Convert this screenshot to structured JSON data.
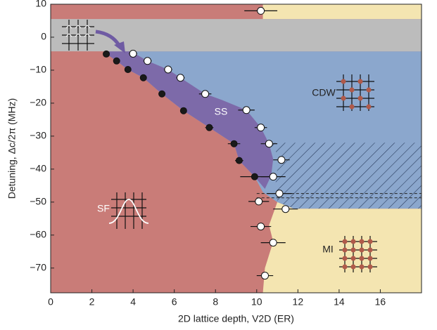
{
  "chart_data": {
    "type": "phase-diagram",
    "xlabel": "2D lattice depth, V2D (ER)",
    "ylabel": "Detuning, Δc/2π (MHz)",
    "xlim": [
      0,
      18
    ],
    "ylim": [
      -77.5,
      10
    ],
    "xticks": [
      0,
      2,
      4,
      6,
      8,
      10,
      12,
      14,
      16
    ],
    "yticks": [
      10,
      0,
      {
        "value": -10,
        "label": "−10"
      },
      {
        "value": -20,
        "label": "−20"
      },
      {
        "value": -30,
        "label": "−30"
      },
      {
        "value": -40,
        "label": "−40"
      },
      {
        "value": -50,
        "label": "−50"
      },
      {
        "value": -60,
        "label": "−60"
      },
      {
        "value": -70,
        "label": "−70"
      }
    ],
    "regions": [
      {
        "label": "SF",
        "color": "#c97c78",
        "points": [
          [
            0,
            -77.5
          ],
          [
            18,
            -77.5
          ],
          [
            18,
            10
          ],
          [
            0,
            10
          ]
        ]
      },
      {
        "color": "#f4e5b1",
        "points": [
          [
            10.3,
            5.5
          ],
          [
            18,
            5.5
          ],
          [
            18,
            10
          ],
          [
            10.3,
            10
          ]
        ]
      },
      {
        "label": "CDW",
        "color": "#8ba7cd",
        "points": [
          [
            2.6,
            -4.3
          ],
          [
            18,
            -4.3
          ],
          [
            18,
            -52
          ],
          [
            11.8,
            -52
          ],
          [
            11,
            -50
          ],
          [
            10.3,
            -47
          ],
          [
            9.9,
            -42.3
          ],
          [
            9.15,
            -37.4
          ],
          [
            8.9,
            -32.3
          ],
          [
            7.7,
            -27.4
          ],
          [
            6.45,
            -22.3
          ],
          [
            5.4,
            -17.2
          ],
          [
            4.5,
            -12.3
          ],
          [
            3.75,
            -9.8
          ],
          [
            3.2,
            -7.2
          ]
        ]
      },
      {
        "hatch": true,
        "color": "#2b3d5e",
        "points": [
          [
            10.6,
            -32
          ],
          [
            18,
            -32
          ],
          [
            18,
            -52
          ],
          [
            11.8,
            -52
          ],
          [
            11,
            -50
          ],
          [
            10.9,
            -42
          ],
          [
            11.2,
            -37
          ]
        ]
      },
      {
        "label": "SS",
        "color": "#7d6aa9",
        "points": [
          [
            2.7,
            -4.3
          ],
          [
            3.9,
            -4.3
          ],
          [
            4.7,
            -7.2
          ],
          [
            5.7,
            -9.8
          ],
          [
            6.3,
            -12.3
          ],
          [
            7.5,
            -17.2
          ],
          [
            8.3,
            -19
          ],
          [
            9.5,
            -22.1
          ],
          [
            10.2,
            -27.4
          ],
          [
            10.6,
            -32.3
          ],
          [
            10.8,
            -37
          ],
          [
            10.7,
            -42
          ],
          [
            10.4,
            -46
          ],
          [
            9.9,
            -42.3
          ],
          [
            9.15,
            -37.4
          ],
          [
            8.9,
            -32.3
          ],
          [
            7.7,
            -27.4
          ],
          [
            6.45,
            -22.3
          ],
          [
            5.4,
            -17.2
          ],
          [
            4.5,
            -12.3
          ],
          [
            3.75,
            -9.8
          ],
          [
            3.2,
            -7.2
          ],
          [
            2.7,
            -5.1
          ]
        ]
      },
      {
        "label": "MI",
        "color": "#f4e5b1",
        "points": [
          [
            18,
            -52
          ],
          [
            11.8,
            -52
          ],
          [
            11,
            -50
          ],
          [
            10.6,
            -57
          ],
          [
            10.8,
            -62
          ],
          [
            10.4,
            -70
          ],
          [
            10.3,
            -77.5
          ],
          [
            18,
            -77.5
          ]
        ]
      },
      {
        "color": "#bcbcbc",
        "points": [
          [
            0,
            -4.3
          ],
          [
            18,
            -4.3
          ],
          [
            18,
            5.5
          ],
          [
            0,
            5.5
          ]
        ]
      }
    ],
    "dashed_y": [
      -47.4,
      -48.7
    ],
    "dashed_x": [
      10,
      18
    ],
    "series": [
      {
        "marker": "open",
        "color": "#ffffff",
        "x": [
          10.2,
          4.0,
          4.7,
          5.7,
          6.3,
          7.5,
          9.5,
          10.2,
          10.6,
          11.2,
          10.8,
          11.1,
          10.1,
          11.4,
          10.2,
          10.8,
          10.4
        ],
        "y": [
          8,
          -5,
          -7.2,
          -9.8,
          -12.3,
          -17.2,
          -22.1,
          -27.4,
          -32.3,
          -37.2,
          -42.3,
          -47.4,
          -49.8,
          -52.1,
          -57.4,
          -62.3,
          -72.3
        ],
        "xerr": [
          0.8,
          0.2,
          0.2,
          0.2,
          0.2,
          0.3,
          0.4,
          0.3,
          0.4,
          0.4,
          0.6,
          0.6,
          0.5,
          0.6,
          0.5,
          0.6,
          0.4
        ]
      },
      {
        "marker": "filled",
        "color": "#1a1a1a",
        "x": [
          2.7,
          3.2,
          3.75,
          4.5,
          5.4,
          6.45,
          7.7,
          8.9,
          9.15,
          9.9
        ],
        "y": [
          -5.1,
          -7.2,
          -9.8,
          -12.3,
          -17.2,
          -22.3,
          -27.4,
          -32.3,
          -37.4,
          -42.3
        ],
        "xerr": [
          0.1,
          0.1,
          0.1,
          0.1,
          0.1,
          0.1,
          0.2,
          0.3,
          0.2,
          0.7
        ]
      }
    ]
  }
}
